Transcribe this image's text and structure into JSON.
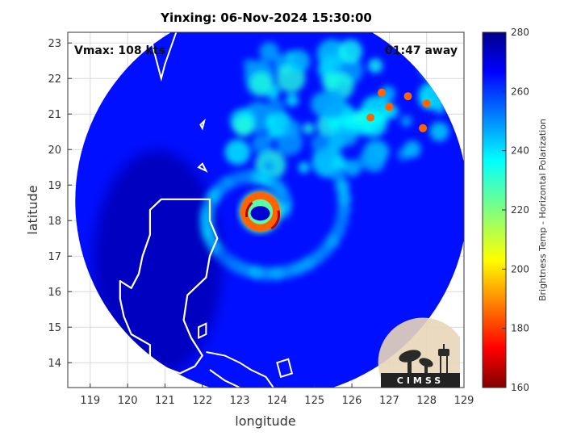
{
  "chart_data": {
    "type": "heatmap",
    "title": "Yinxing: 06-Nov-2024 15:30:00",
    "xlabel": "longitude",
    "ylabel": "latitude",
    "xlim": [
      118.4,
      129
    ],
    "ylim": [
      13.3,
      23.3
    ],
    "xticks": [
      119,
      120,
      121,
      122,
      123,
      124,
      125,
      126,
      127,
      128,
      129
    ],
    "yticks": [
      14,
      15,
      16,
      17,
      18,
      19,
      20,
      21,
      22,
      23
    ],
    "grid": true,
    "annotations": {
      "vmax": "Vmax: 108 kts",
      "time_away": "01:47 away"
    },
    "colorbar": {
      "label": "Brightness Temp - Horizontal Polarization",
      "range": [
        160,
        280
      ],
      "ticks": [
        160,
        180,
        200,
        220,
        240,
        260,
        280
      ],
      "colormap": "jet"
    },
    "swath": {
      "center_lon": 123.85,
      "center_lat": 18.55,
      "radius_deg": 5.25
    },
    "storm": {
      "eye_lon": 123.55,
      "eye_lat": 18.25
    },
    "values_K": {
      "background": 265,
      "eye": 272,
      "eyewall": 185,
      "inner_rainband": 240,
      "outer_rainbands": 250,
      "convective_cells": 165
    }
  },
  "logo": {
    "text": "CIMSS"
  }
}
